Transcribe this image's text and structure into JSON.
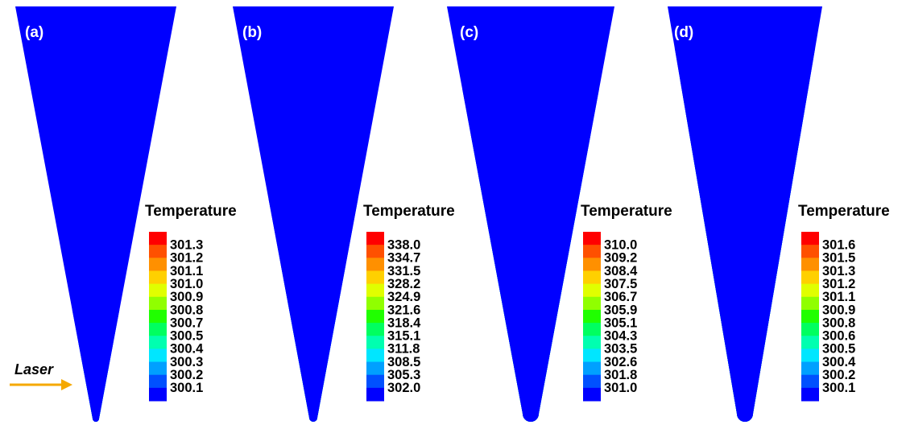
{
  "colormap": [
    "#0000ff",
    "#0050ff",
    "#00a0ff",
    "#00e6ff",
    "#00ffb0",
    "#00ff60",
    "#20ff00",
    "#90ff00",
    "#e0ff00",
    "#ffd000",
    "#ff9000",
    "#ff5000",
    "#ff0000"
  ],
  "legend_title": "Temperature",
  "laser": {
    "label": "Laser",
    "arrow_color": "#f5a800"
  },
  "panels": [
    {
      "label": "(a)",
      "ticks": [
        "301.3",
        "301.2",
        "301.1",
        "301.0",
        "300.9",
        "300.8",
        "300.7",
        "300.5",
        "300.4",
        "300.3",
        "300.2",
        "300.1"
      ],
      "bands": [
        0,
        1,
        2,
        3,
        4,
        5,
        6,
        7,
        8,
        9,
        10,
        11,
        12
      ],
      "band_bounds": [
        0.0,
        0.73,
        0.81,
        0.865,
        0.905,
        0.935,
        0.955,
        0.968,
        0.978,
        0.986,
        0.992,
        0.996,
        0.999,
        1.0
      ]
    },
    {
      "label": "(b)",
      "ticks": [
        "338.0",
        "334.7",
        "331.5",
        "328.2",
        "324.9",
        "321.6",
        "318.4",
        "315.1",
        "311.8",
        "308.5",
        "305.3",
        "302.0"
      ],
      "bands": [
        0,
        1,
        2,
        3,
        4,
        5,
        6,
        7,
        8,
        9,
        10,
        11,
        12
      ],
      "band_bounds": [
        0.0,
        0.46,
        0.62,
        0.71,
        0.77,
        0.82,
        0.86,
        0.895,
        0.925,
        0.95,
        0.97,
        0.984,
        0.994,
        1.0
      ]
    },
    {
      "label": "(c)",
      "ticks": [
        "310.0",
        "309.2",
        "308.4",
        "307.5",
        "306.7",
        "305.9",
        "305.1",
        "304.3",
        "303.5",
        "302.6",
        "301.8",
        "301.0"
      ],
      "bands": [
        0,
        1,
        2,
        3,
        4,
        5,
        6,
        7,
        8,
        9,
        10,
        11,
        12
      ],
      "band_bounds": [
        0.0,
        0.19,
        0.3,
        0.4,
        0.48,
        0.56,
        0.64,
        0.71,
        0.78,
        0.84,
        0.89,
        0.935,
        0.965,
        1.0
      ]
    },
    {
      "label": "(d)",
      "ticks": [
        "301.6",
        "301.5",
        "301.3",
        "301.2",
        "301.1",
        "300.9",
        "300.8",
        "300.6",
        "300.5",
        "300.4",
        "300.2",
        "300.1"
      ],
      "bands": [
        0,
        1,
        2,
        3,
        4,
        5,
        6,
        7,
        8,
        9,
        10,
        11,
        12
      ],
      "band_bounds": [
        0.0,
        0.09,
        0.17,
        0.25,
        0.33,
        0.41,
        0.49,
        0.57,
        0.64,
        0.71,
        0.79,
        0.87,
        0.94,
        1.0
      ]
    }
  ]
}
